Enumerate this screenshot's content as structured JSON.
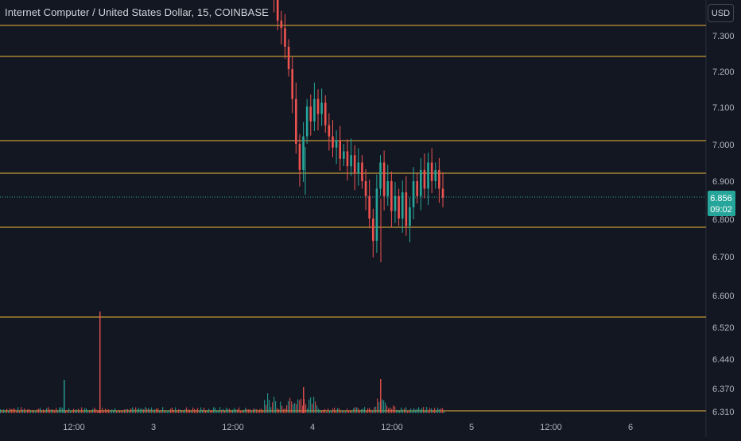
{
  "header": {
    "title": "Internet Computer / United States Dollar, 15, COINBASE",
    "currency": "USD"
  },
  "colors": {
    "background": "#131722",
    "up": "#26a69a",
    "down": "#ef5350",
    "level_line": "#f0b93a",
    "last_price_badge": "#26a69a",
    "axis_text": "#b2b5be"
  },
  "chart_data": {
    "type": "candlestick",
    "x_tick_labels": [
      "12:00",
      "3",
      "12:00",
      "4",
      "12:00",
      "5",
      "12:00",
      "6"
    ],
    "y_tick_labels": [
      "7.300",
      "7.200",
      "7.100",
      "7.000",
      "6.900",
      "6.800",
      "6.700",
      "6.600",
      "6.520",
      "6.440",
      "6.370",
      "6.310"
    ],
    "horizontal_levels": [
      7.335,
      7.24,
      7.012,
      6.918,
      6.777,
      6.545,
      6.31
    ],
    "last_price": "6.856",
    "countdown": "09:02",
    "candles_close_path": [
      [
        7.45,
        7.42
      ],
      [
        7.42,
        7.39
      ],
      [
        7.39,
        7.33
      ],
      [
        7.33,
        7.31
      ],
      [
        7.31,
        7.26
      ],
      [
        7.26,
        7.2
      ],
      [
        7.2,
        7.12
      ],
      [
        7.12,
        7.0
      ],
      [
        7.0,
        6.93
      ],
      [
        6.93,
        7.02
      ],
      [
        7.02,
        7.1
      ],
      [
        7.1,
        7.06
      ],
      [
        7.06,
        7.12
      ],
      [
        7.12,
        7.08
      ],
      [
        7.08,
        7.11
      ],
      [
        7.11,
        7.05
      ],
      [
        7.05,
        7.02
      ],
      [
        7.02,
        6.99
      ],
      [
        6.99,
        7.01
      ],
      [
        7.01,
        6.96
      ],
      [
        6.96,
        6.98
      ],
      [
        6.98,
        6.94
      ],
      [
        6.94,
        6.97
      ],
      [
        6.97,
        6.92
      ],
      [
        6.92,
        6.95
      ],
      [
        6.95,
        6.9
      ],
      [
        6.9,
        6.86
      ],
      [
        6.86,
        6.8
      ],
      [
        6.8,
        6.74
      ],
      [
        6.74,
        6.88
      ],
      [
        6.88,
        6.95
      ],
      [
        6.95,
        6.86
      ],
      [
        6.86,
        6.9
      ],
      [
        6.9,
        6.82
      ],
      [
        6.82,
        6.86
      ],
      [
        6.86,
        6.8
      ],
      [
        6.8,
        6.87
      ],
      [
        6.87,
        6.78
      ],
      [
        6.78,
        6.83
      ],
      [
        6.83,
        6.9
      ],
      [
        6.9,
        6.86
      ],
      [
        6.86,
        6.93
      ],
      [
        6.93,
        6.88
      ],
      [
        6.88,
        6.95
      ],
      [
        6.95,
        6.9
      ],
      [
        6.9,
        6.93
      ],
      [
        6.93,
        6.88
      ],
      [
        6.88,
        6.856
      ]
    ],
    "volume_spikes": [
      {
        "position": 0.14,
        "value": 1.0
      },
      {
        "position": 0.43,
        "value": 0.25
      },
      {
        "position": 0.54,
        "value": 0.2
      },
      {
        "position": 0.09,
        "value": 0.27
      }
    ],
    "grid": false,
    "legend": "none"
  }
}
